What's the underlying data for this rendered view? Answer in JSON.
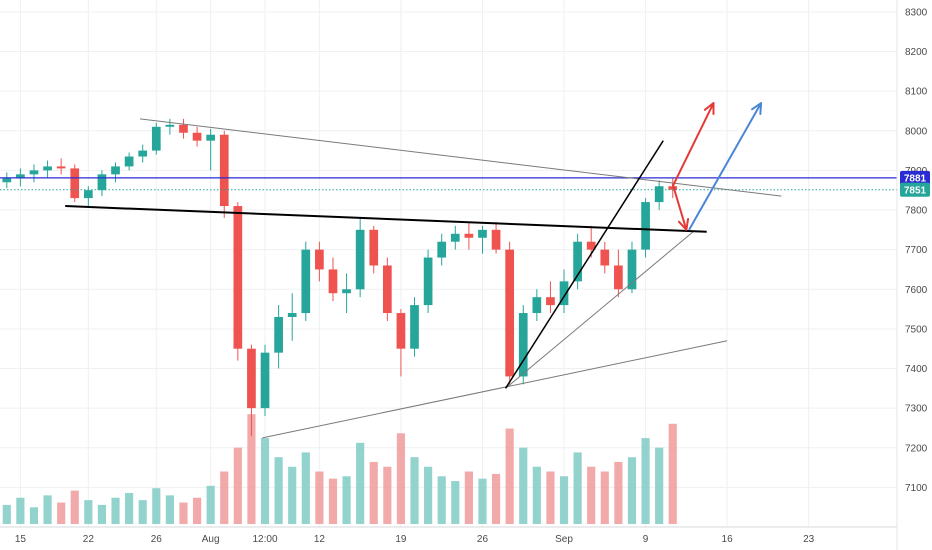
{
  "chart_data": {
    "type": "candlestick",
    "grid": true,
    "colors": {
      "up": "#26a69a",
      "down": "#ef5350",
      "up_volume": "#80cbc4",
      "down_volume": "#ef9a9a",
      "grid": "#eef0f3",
      "trend_gray": "#7a7a7a",
      "trend_black": "#000000",
      "price_line": "#2b2bd4",
      "price_badge": "#2b2bd4",
      "current_line": "#26a69a",
      "current_badge": "#26a69a",
      "arrow_red": "#e53935",
      "arrow_blue": "#4a86d8"
    },
    "y_axis": {
      "range": [
        7000,
        8330
      ],
      "ticks": [
        "7100",
        "7200",
        "7300",
        "7400",
        "7500",
        "7600",
        "7700",
        "7800",
        "7900",
        "8000",
        "8100",
        "8200",
        "8300"
      ]
    },
    "x_axis": {
      "range": [
        0,
        66
      ],
      "ticks": [
        {
          "label": "15",
          "x": 1.5
        },
        {
          "label": "22",
          "x": 6.5
        },
        {
          "label": "26",
          "x": 11.5
        },
        {
          "label": "Aug",
          "x": 15.5
        },
        {
          "label": "12:00",
          "x": 19.5
        },
        {
          "label": "12",
          "x": 23.5
        },
        {
          "label": "19",
          "x": 29.5
        },
        {
          "label": "26",
          "x": 35.5
        },
        {
          "label": "Sep",
          "x": 41.5
        },
        {
          "label": "9",
          "x": 47.5
        },
        {
          "label": "16",
          "x": 53.5
        },
        {
          "label": "23",
          "x": 59.5
        }
      ]
    },
    "price_markers": [
      {
        "label": "7881",
        "value": 7881,
        "style": "line"
      },
      {
        "label": "7851",
        "value": 7851,
        "style": "dotted"
      }
    ],
    "volume_ref_max": 220,
    "ohlc": [
      [
        7870,
        7895,
        7855,
        7880
      ],
      [
        7880,
        7905,
        7860,
        7890
      ],
      [
        7890,
        7915,
        7870,
        7900
      ],
      [
        7900,
        7925,
        7880,
        7910
      ],
      [
        7910,
        7930,
        7890,
        7905
      ],
      [
        7905,
        7915,
        7820,
        7830
      ],
      [
        7830,
        7860,
        7805,
        7850
      ],
      [
        7850,
        7900,
        7835,
        7890
      ],
      [
        7890,
        7920,
        7870,
        7910
      ],
      [
        7910,
        7945,
        7900,
        7935
      ],
      [
        7935,
        7965,
        7920,
        7950
      ],
      [
        7950,
        8020,
        7940,
        8010
      ],
      [
        8010,
        8030,
        7990,
        8015
      ],
      [
        8015,
        8030,
        7980,
        7995
      ],
      [
        7995,
        8010,
        7960,
        7975
      ],
      [
        7975,
        8005,
        7900,
        7990
      ],
      [
        7990,
        8000,
        7780,
        7810
      ],
      [
        7810,
        7820,
        7420,
        7450
      ],
      [
        7450,
        7460,
        7230,
        7300
      ],
      [
        7300,
        7460,
        7280,
        7440
      ],
      [
        7440,
        7560,
        7400,
        7530
      ],
      [
        7530,
        7590,
        7470,
        7540
      ],
      [
        7540,
        7720,
        7520,
        7700
      ],
      [
        7700,
        7720,
        7620,
        7650
      ],
      [
        7650,
        7680,
        7570,
        7590
      ],
      [
        7590,
        7640,
        7540,
        7600
      ],
      [
        7600,
        7780,
        7580,
        7750
      ],
      [
        7750,
        7760,
        7640,
        7660
      ],
      [
        7660,
        7680,
        7520,
        7540
      ],
      [
        7540,
        7550,
        7380,
        7450
      ],
      [
        7450,
        7580,
        7430,
        7560
      ],
      [
        7560,
        7700,
        7540,
        7680
      ],
      [
        7680,
        7740,
        7660,
        7720
      ],
      [
        7720,
        7760,
        7700,
        7740
      ],
      [
        7740,
        7770,
        7700,
        7730
      ],
      [
        7730,
        7760,
        7690,
        7750
      ],
      [
        7750,
        7770,
        7690,
        7700
      ],
      [
        7700,
        7720,
        7360,
        7380
      ],
      [
        7380,
        7560,
        7360,
        7540
      ],
      [
        7540,
        7600,
        7520,
        7580
      ],
      [
        7580,
        7620,
        7540,
        7560
      ],
      [
        7560,
        7650,
        7540,
        7620
      ],
      [
        7620,
        7740,
        7600,
        7720
      ],
      [
        7720,
        7760,
        7680,
        7700
      ],
      [
        7700,
        7720,
        7640,
        7660
      ],
      [
        7660,
        7700,
        7580,
        7600
      ],
      [
        7600,
        7720,
        7590,
        7700
      ],
      [
        7700,
        7830,
        7680,
        7820
      ],
      [
        7820,
        7875,
        7800,
        7860
      ],
      [
        7860,
        7880,
        7830,
        7851
      ]
    ],
    "volume": [
      40,
      55,
      35,
      60,
      45,
      70,
      50,
      40,
      55,
      65,
      50,
      75,
      60,
      45,
      55,
      80,
      110,
      160,
      230,
      180,
      140,
      120,
      150,
      110,
      95,
      100,
      170,
      130,
      120,
      190,
      140,
      120,
      100,
      90,
      110,
      95,
      105,
      200,
      160,
      120,
      110,
      100,
      150,
      120,
      110,
      130,
      140,
      180,
      160,
      210
    ],
    "annotations": {
      "trend_gray": [
        {
          "x1": 10.3,
          "y1": 8030,
          "x2": 57.5,
          "y2": 7835
        },
        {
          "x1": 19.3,
          "y1": 7225,
          "x2": 53.5,
          "y2": 7470
        },
        {
          "x1": 37.2,
          "y1": 7350,
          "x2": 51.0,
          "y2": 7745
        }
      ],
      "trend_black": [
        {
          "x1": 4.8,
          "y1": 7810,
          "x2": 52.0,
          "y2": 7745,
          "thick": true
        },
        {
          "x1": 37.2,
          "y1": 7350,
          "x2": 48.8,
          "y2": 7975,
          "thick": false
        }
      ],
      "arrows_red": [
        {
          "x1": 49.5,
          "y1": 7860,
          "x2": 52.5,
          "y2": 8070
        },
        {
          "x1": 49.5,
          "y1": 7865,
          "x2": 50.5,
          "y2": 7750
        }
      ],
      "arrows_blue": [
        {
          "x1": 50.7,
          "y1": 7750,
          "x2": 56.0,
          "y2": 8070
        }
      ]
    }
  }
}
